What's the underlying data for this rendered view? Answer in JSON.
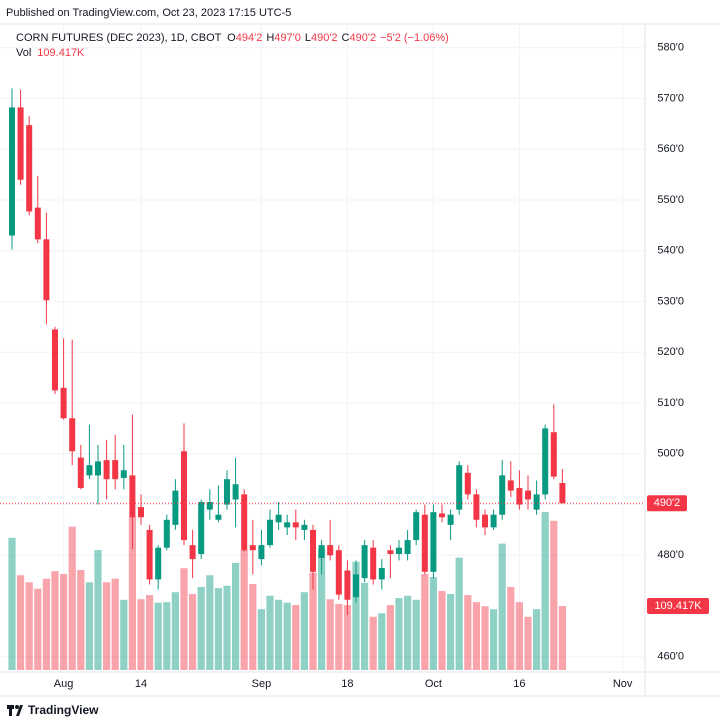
{
  "header": {
    "published": "Published on TradingView.com, Oct 23, 2023 17:15 UTC-5"
  },
  "footer": {
    "brand": "TradingView"
  },
  "chart_data": {
    "type": "candlestick",
    "title": "CORN FUTURES (DEC 2023), 1D, CBOT",
    "legend": [
      {
        "key": "O",
        "text": "494'2"
      },
      {
        "key": "H",
        "text": "497'0"
      },
      {
        "key": "L",
        "text": "490'2"
      },
      {
        "key": "C",
        "text": "490'2"
      }
    ],
    "change": "−5'2 (−1.06%)",
    "volume_title": "Vol",
    "volume_label": {
      "value": 109417,
      "label": "109.417K"
    },
    "last_price": {
      "value": 490.25,
      "label": "490'2"
    },
    "up_color": "#089981",
    "down_color": "#f23645",
    "volume_up_color": "rgba(8,153,129,0.45)",
    "volume_down_color": "rgba(242,54,69,0.45)",
    "categories": [
      null,
      null,
      null,
      null,
      null,
      null,
      "Aug",
      null,
      null,
      null,
      null,
      null,
      null,
      null,
      null,
      "14",
      null,
      null,
      null,
      null,
      null,
      null,
      null,
      null,
      null,
      null,
      null,
      null,
      null,
      "Sep",
      null,
      null,
      null,
      null,
      null,
      null,
      null,
      null,
      null,
      "18",
      null,
      null,
      null,
      null,
      null,
      null,
      null,
      null,
      null,
      "Oct",
      null,
      null,
      null,
      null,
      null,
      null,
      null,
      null,
      null,
      "16",
      null,
      null,
      null,
      null,
      null,
      null,
      null,
      null,
      null,
      null,
      null,
      "Nov"
    ],
    "open": [
      543,
      568.25,
      564.75,
      548.5,
      542.25,
      524.5,
      513,
      507,
      499.25,
      495.75,
      495.75,
      498.75,
      498.75,
      495.25,
      495.75,
      489.5,
      485,
      475.25,
      481.5,
      486,
      500.5,
      482,
      480.25,
      489,
      487,
      490,
      491,
      492,
      482,
      479.25,
      482,
      486.5,
      485.5,
      486.5,
      485,
      485,
      479.5,
      482,
      481,
      477,
      471.75,
      475.5,
      481.5,
      475.25,
      481,
      480.25,
      480.25,
      483,
      488,
      476.75,
      488.25,
      486,
      489,
      496.25,
      492,
      488,
      485.5,
      488,
      494.75,
      493.25,
      492.75,
      489,
      492,
      504.25,
      494.25,
      null,
      null,
      null,
      null,
      null,
      null,
      null
    ],
    "high": [
      572,
      571.75,
      566.5,
      554.75,
      547.5,
      525,
      522.75,
      522.5,
      501.75,
      505.75,
      501.75,
      502.75,
      503.75,
      501.75,
      507.75,
      492,
      486,
      482,
      488,
      495,
      506,
      485,
      491,
      493,
      493.75,
      496.75,
      499.25,
      493,
      487,
      485,
      489,
      490.5,
      488,
      489,
      487,
      486,
      483,
      487,
      482,
      479,
      479,
      483,
      483,
      479.25,
      482,
      483,
      485,
      489,
      490,
      490,
      490,
      489,
      498.5,
      497.75,
      493,
      489,
      489,
      498.75,
      498.5,
      496.75,
      495.75,
      494.75,
      505.75,
      509.75,
      497,
      null,
      null,
      null,
      null,
      null,
      null,
      null
    ],
    "low": [
      540.25,
      553,
      547,
      541.5,
      525.5,
      511.75,
      506.75,
      497.75,
      493,
      495,
      490,
      491,
      493,
      493,
      481.25,
      486,
      474.25,
      473.25,
      481,
      485,
      482,
      475.5,
      479.25,
      487,
      486.5,
      489,
      485.5,
      480.75,
      476.25,
      478,
      481.5,
      485,
      484,
      483,
      483,
      473.25,
      476.25,
      479,
      471.25,
      468.25,
      470.75,
      474.75,
      474.25,
      473.25,
      475.5,
      479,
      479,
      482,
      476.25,
      475.5,
      486.5,
      483,
      488,
      491,
      485.5,
      484,
      485,
      487,
      491.5,
      489,
      489,
      488,
      491,
      495,
      490.25,
      null,
      null,
      null,
      null,
      null,
      null,
      null
    ],
    "close": [
      568.25,
      554,
      547.75,
      542.25,
      530.25,
      512.5,
      507,
      500.5,
      493.25,
      497.75,
      498.5,
      495,
      495,
      496.75,
      487.5,
      487.5,
      475.25,
      481.5,
      487,
      492.75,
      483,
      479.25,
      490.5,
      490.5,
      488,
      495,
      494,
      481,
      481,
      482,
      487,
      488,
      486.5,
      485.5,
      486,
      476.75,
      482,
      480,
      472.25,
      471.25,
      476.25,
      482,
      475.25,
      477.5,
      480.25,
      481.5,
      483,
      488.5,
      476.75,
      488.5,
      487.5,
      488,
      497.75,
      492,
      487,
      485.5,
      488,
      495.75,
      492.75,
      490,
      491,
      492,
      505,
      495.5,
      490.25,
      null,
      null,
      null,
      null,
      null,
      null,
      null
    ],
    "volume": [
      226000,
      162000,
      150000,
      139000,
      156000,
      169000,
      164000,
      245000,
      171000,
      150000,
      205000,
      150000,
      156000,
      120000,
      262000,
      121000,
      128000,
      115000,
      116000,
      133000,
      174000,
      130000,
      142000,
      162000,
      140000,
      144000,
      183000,
      205000,
      147000,
      104000,
      127000,
      120000,
      115000,
      111000,
      133000,
      166000,
      207000,
      121000,
      113000,
      111000,
      185000,
      149000,
      91000,
      97000,
      111000,
      123000,
      127000,
      120000,
      164000,
      159000,
      135000,
      130000,
      192000,
      128000,
      116000,
      109000,
      104000,
      216000,
      142000,
      116000,
      91000,
      104000,
      270000,
      255000,
      109417,
      null,
      null,
      null,
      null,
      null,
      null,
      null
    ],
    "ylim": [
      457.4,
      583.5
    ],
    "yticks": [
      {
        "value": 580,
        "label": "580'0"
      },
      {
        "value": 570,
        "label": "570'0"
      },
      {
        "value": 560,
        "label": "560'0"
      },
      {
        "value": 550,
        "label": "550'0"
      },
      {
        "value": 540,
        "label": "540'0"
      },
      {
        "value": 530,
        "label": "530'0"
      },
      {
        "value": 520,
        "label": "520'0"
      },
      {
        "value": 510,
        "label": "510'0"
      },
      {
        "value": 500,
        "label": "500'0"
      },
      {
        "value": 490,
        "label": "490'0"
      },
      {
        "value": 480,
        "label": "480'0"
      },
      {
        "value": 460,
        "label": "460'0"
      }
    ],
    "volume_ylim": [
      0,
      1094000
    ],
    "grid": true
  }
}
